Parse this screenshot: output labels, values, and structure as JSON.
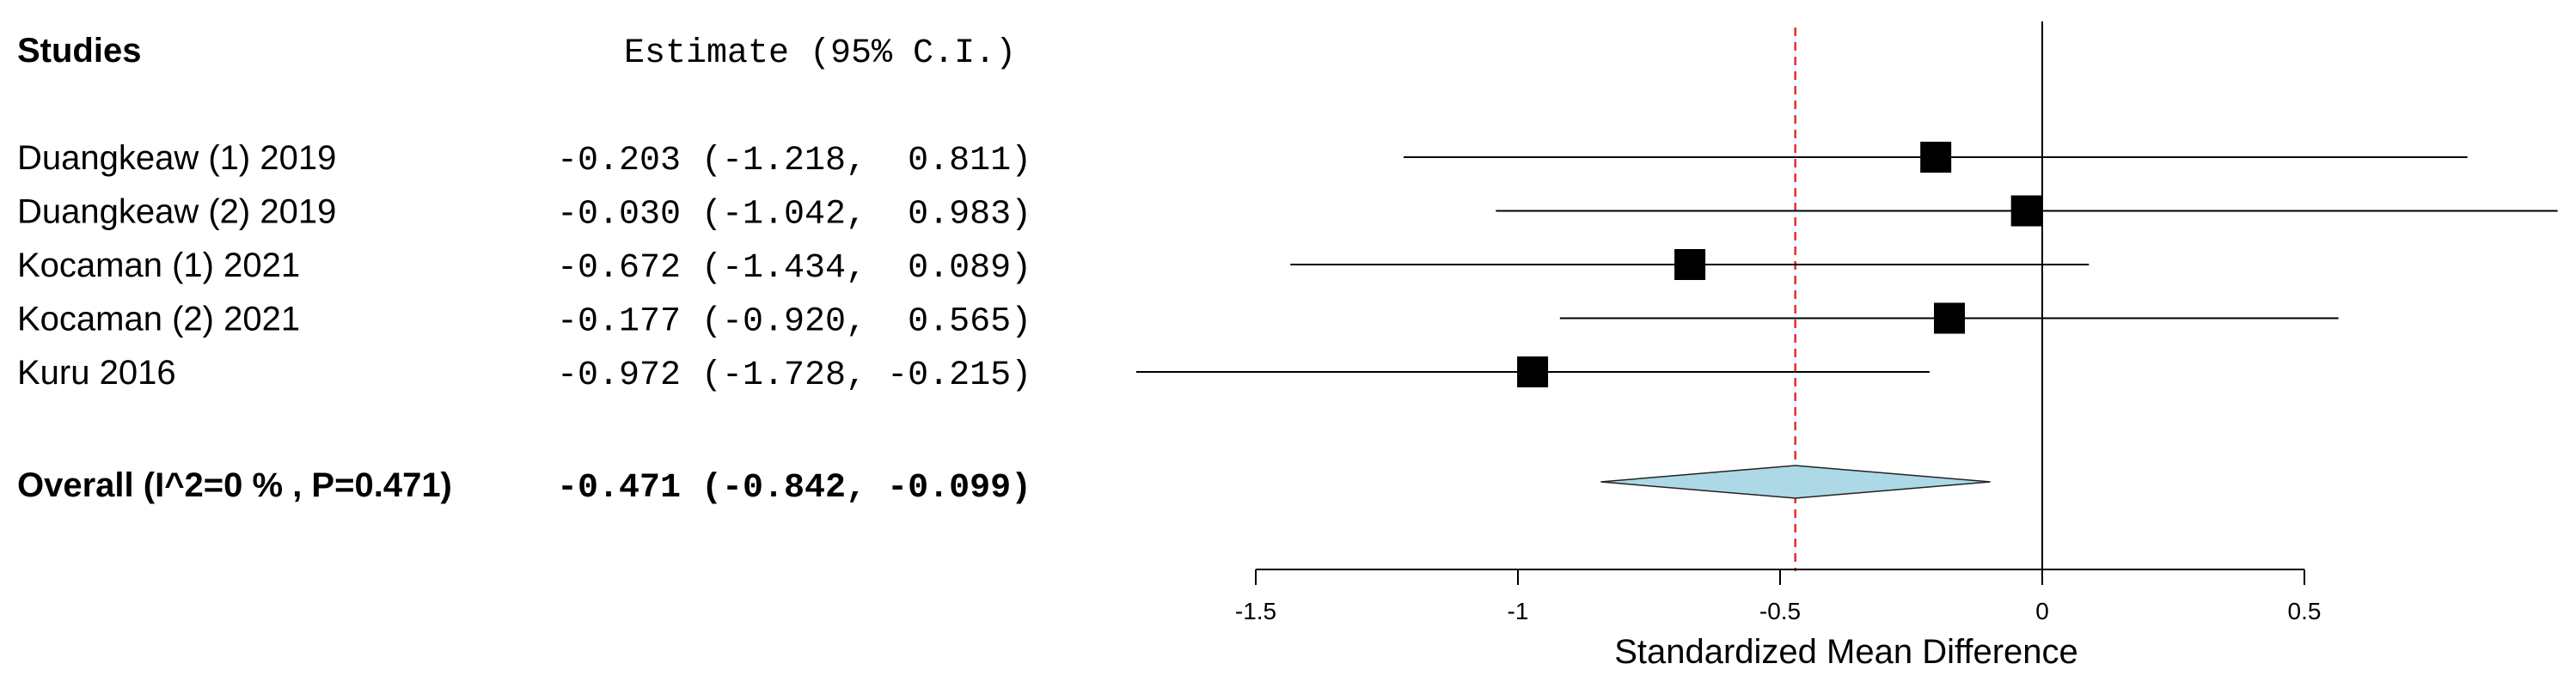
{
  "chart_data": {
    "type": "forest",
    "header": {
      "studies": "Studies",
      "estimate": "Estimate (95% C.I.)"
    },
    "studies": [
      {
        "label": "Duangkeaw (1) 2019",
        "estimate": -0.203,
        "lower": -1.218,
        "upper": 0.811,
        "text": "-0.203 (-1.218,  0.811)"
      },
      {
        "label": "Duangkeaw (2) 2019",
        "estimate": -0.03,
        "lower": -1.042,
        "upper": 0.983,
        "text": "-0.030 (-1.042,  0.983)"
      },
      {
        "label": "Kocaman (1) 2021",
        "estimate": -0.672,
        "lower": -1.434,
        "upper": 0.089,
        "text": "-0.672 (-1.434,  0.089)"
      },
      {
        "label": "Kocaman (2) 2021",
        "estimate": -0.177,
        "lower": -0.92,
        "upper": 0.565,
        "text": "-0.177 (-0.920,  0.565)"
      },
      {
        "label": "Kuru 2016",
        "estimate": -0.972,
        "lower": -1.728,
        "upper": -0.215,
        "text": "-0.972 (-1.728, -0.215)"
      }
    ],
    "overall": {
      "label": "Overall (I^2=0 % , P=0.471)",
      "estimate": -0.471,
      "lower": -0.842,
      "upper": -0.099,
      "text": "-0.471 (-0.842, -0.099)"
    },
    "xlabel": "Standardized Mean Difference",
    "xticks": [
      -1.5,
      -1,
      -0.5,
      0,
      0.5
    ],
    "xtick_labels": [
      "-1.5",
      "-1",
      "-0.5",
      "0",
      "0.5"
    ],
    "colors": {
      "marker": "#000000",
      "diamond_fill": "#add8e6",
      "overall_line": "#e0302b",
      "null_line": "#000000"
    }
  }
}
